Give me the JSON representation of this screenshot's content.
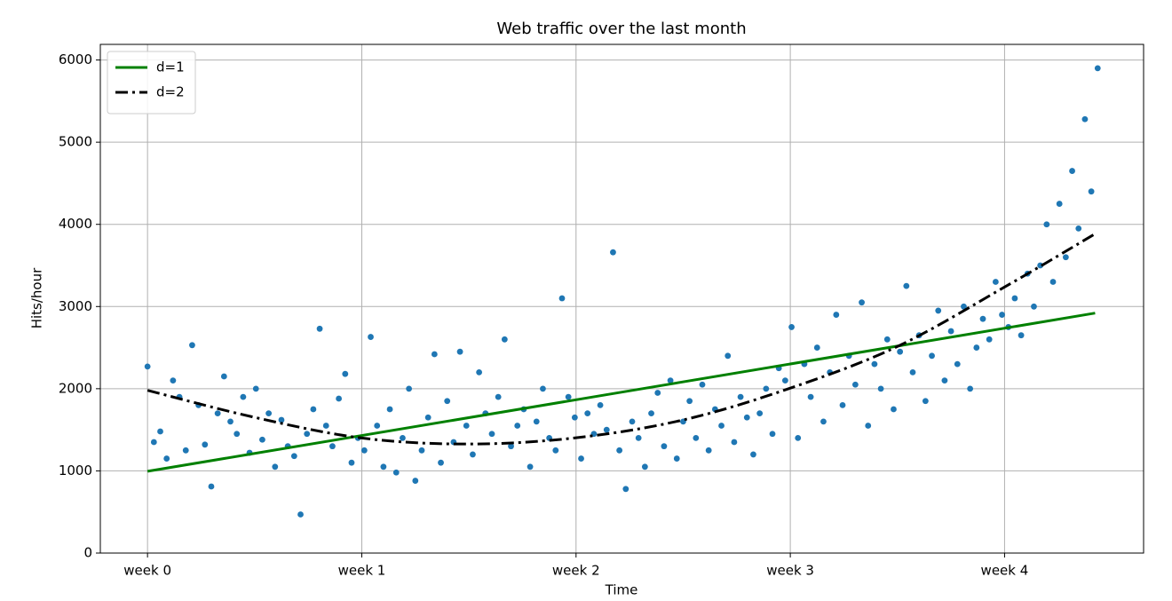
{
  "chart_data": {
    "type": "scatter",
    "title": "Web traffic over the last month",
    "xlabel": "Time",
    "ylabel": "Hits/hour",
    "xlim": [
      -37,
      781
    ],
    "ylim": [
      0,
      6190
    ],
    "xticks": [
      {
        "value": 0,
        "label": "week 0"
      },
      {
        "value": 168,
        "label": "week 1"
      },
      {
        "value": 336,
        "label": "week 2"
      },
      {
        "value": 504,
        "label": "week 3"
      },
      {
        "value": 672,
        "label": "week 4"
      }
    ],
    "yticks": [
      0,
      1000,
      2000,
      3000,
      4000,
      5000,
      6000
    ],
    "grid": true,
    "legend": "upper left",
    "points": {
      "color": "#1f77b4",
      "x": [
        0,
        5,
        10,
        15,
        20,
        25,
        30,
        35,
        40,
        45,
        50,
        55,
        60,
        65,
        70,
        75,
        80,
        85,
        90,
        95,
        100,
        105,
        110,
        115,
        120,
        125,
        130,
        135,
        140,
        145,
        150,
        155,
        160,
        165,
        170,
        175,
        180,
        185,
        190,
        195,
        200,
        205,
        210,
        215,
        220,
        225,
        230,
        235,
        240,
        245,
        250,
        255,
        260,
        265,
        270,
        275,
        280,
        285,
        290,
        295,
        300,
        305,
        310,
        315,
        320,
        325,
        330,
        335,
        340,
        345,
        350,
        355,
        360,
        365,
        370,
        375,
        380,
        385,
        390,
        395,
        400,
        405,
        410,
        415,
        420,
        425,
        430,
        435,
        440,
        445,
        450,
        455,
        460,
        465,
        470,
        475,
        480,
        485,
        490,
        495,
        500,
        505,
        510,
        515,
        520,
        525,
        530,
        535,
        540,
        545,
        550,
        555,
        560,
        565,
        570,
        575,
        580,
        585,
        590,
        595,
        600,
        605,
        610,
        615,
        620,
        625,
        630,
        635,
        640,
        645,
        650,
        655,
        660,
        665,
        670,
        675,
        680,
        685,
        690,
        695,
        700,
        705,
        710,
        715,
        720,
        725,
        730,
        735,
        740,
        745
      ],
      "values": [
        2270,
        1350,
        1480,
        1150,
        2100,
        1900,
        1250,
        2530,
        1800,
        1320,
        810,
        1700,
        2150,
        1600,
        1450,
        1900,
        1220,
        2000,
        1380,
        1700,
        1050,
        1620,
        1300,
        1180,
        470,
        1450,
        1750,
        2730,
        1550,
        1300,
        1880,
        2180,
        1100,
        1400,
        1250,
        2630,
        1550,
        1050,
        1750,
        980,
        1400,
        2000,
        880,
        1250,
        1650,
        2420,
        1100,
        1850,
        1350,
        2450,
        1550,
        1200,
        2200,
        1700,
        1450,
        1900,
        2600,
        1300,
        1550,
        1750,
        1050,
        1600,
        2000,
        1400,
        1250,
        3100,
        1900,
        1650,
        1150,
        1700,
        1450,
        1800,
        1500,
        3660,
        1250,
        780,
        1600,
        1400,
        1050,
        1700,
        1950,
        1300,
        2100,
        1150,
        1600,
        1850,
        1400,
        2050,
        1250,
        1750,
        1550,
        2400,
        1350,
        1900,
        1650,
        1200,
        1700,
        2000,
        1450,
        2250,
        2100,
        2750,
        1400,
        2300,
        1900,
        2500,
        1600,
        2200,
        2900,
        1800,
        2400,
        2050,
        3050,
        1550,
        2300,
        2000,
        2600,
        1750,
        2450,
        3250,
        2200,
        2650,
        1850,
        2400,
        2950,
        2100,
        2700,
        2300,
        3000,
        2000,
        2500,
        2850,
        2600,
        3300,
        2900,
        2750,
        3100,
        2650,
        3400,
        3000,
        3500,
        4000,
        3300,
        4250,
        3600,
        4650,
        3950,
        5280,
        4400,
        5900
      ]
    },
    "series": [
      {
        "name": "d=1",
        "color": "#008000",
        "dash": "solid",
        "x": [
          0,
          743
        ],
        "values": [
          995,
          2920
        ]
      },
      {
        "name": "d=2",
        "color": "#000000",
        "dash": "dashdot",
        "x": [
          0,
          84,
          168,
          252,
          336,
          420,
          504,
          588,
          672,
          743
        ],
        "values": [
          1980,
          1651,
          1400,
          1327,
          1403,
          1620,
          2007,
          2514,
          3237,
          3885
        ]
      }
    ]
  }
}
